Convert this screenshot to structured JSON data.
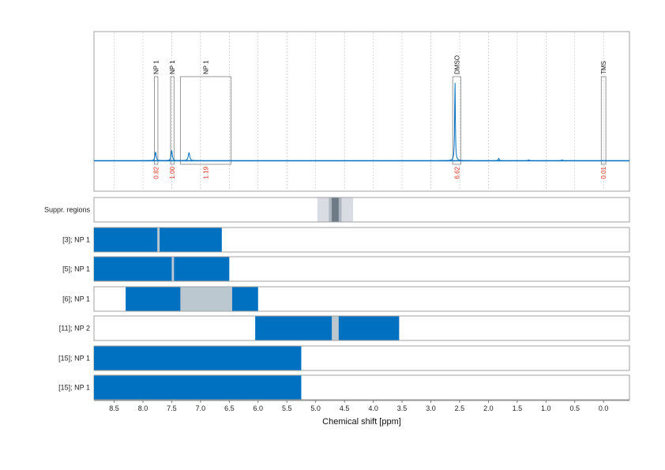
{
  "chart_data": {
    "type": "line",
    "xlabel": "Chemical shift [ppm]",
    "xlim": [
      8.85,
      -0.45
    ],
    "x_ticks": [
      8.5,
      8.0,
      7.5,
      7.0,
      6.5,
      6.0,
      5.5,
      5.0,
      4.5,
      4.0,
      3.5,
      3.0,
      2.5,
      2.0,
      1.5,
      1.0,
      0.5,
      0.0
    ],
    "x_tick_labels": [
      "8.5",
      "8.0",
      "7.5",
      "7.0",
      "6.5",
      "6.0",
      "5.5",
      "5.0",
      "4.5",
      "4.0",
      "3.5",
      "3.0",
      "2.5",
      "2.0",
      "1.5",
      "1.0",
      "0.5",
      "0.0"
    ],
    "grid": "vertical dotted",
    "spectrum_color": "#0070c0",
    "annotation_color": "#e0301e",
    "spectrum_peaks": [
      {
        "x": 7.78,
        "height": 0.11,
        "width": 0.012
      },
      {
        "x": 7.5,
        "height": 0.13,
        "width": 0.012
      },
      {
        "x": 7.2,
        "height": 0.1,
        "width": 0.015
      },
      {
        "x": 2.58,
        "height": 1.0,
        "width": 0.007
      },
      {
        "x": 1.82,
        "height": 0.03,
        "width": 0.01
      },
      {
        "x": 1.3,
        "height": 0.01,
        "width": 0.015
      },
      {
        "x": 0.72,
        "height": 0.01,
        "width": 0.015
      }
    ],
    "peak_regions": [
      {
        "label": "NP 1",
        "x_left": 7.8,
        "x_right": 7.74,
        "integral": "0.82"
      },
      {
        "label": "NP 1",
        "x_left": 7.52,
        "x_right": 7.46,
        "integral": "1.00"
      },
      {
        "label": "NP 1",
        "x_left": 7.35,
        "x_right": 6.47,
        "integral": "1.19"
      },
      {
        "label": "DMSO",
        "x_left": 2.62,
        "x_right": 2.48,
        "integral": "6.62"
      },
      {
        "label": "TMS",
        "x_left": 0.04,
        "x_right": -0.04,
        "integral": "0.01"
      }
    ],
    "rows": [
      {
        "label": "Suppr. regions",
        "bars": [
          {
            "from": 4.97,
            "to": 4.35,
            "color": "#d9dde3"
          },
          {
            "from": 4.77,
            "to": 4.55,
            "color": "#aeb6bf"
          },
          {
            "from": 4.72,
            "to": 4.6,
            "color": "#6d7b87"
          }
        ]
      },
      {
        "label": "[3]; NP 1",
        "bars": [
          {
            "from": 8.85,
            "to": 6.63,
            "color": "#0070c0"
          },
          {
            "from": 7.75,
            "to": 7.71,
            "color": "#bcc8d0"
          }
        ]
      },
      {
        "label": "[5]; NP 1",
        "bars": [
          {
            "from": 8.85,
            "to": 6.5,
            "color": "#0070c0"
          },
          {
            "from": 7.5,
            "to": 7.46,
            "color": "#bcc8d0"
          }
        ]
      },
      {
        "label": "[6]; NP 1",
        "bars": [
          {
            "from": 8.3,
            "to": 6.0,
            "color": "#0070c0"
          },
          {
            "from": 7.35,
            "to": 6.45,
            "color": "#bcc8d0"
          }
        ]
      },
      {
        "label": "[11]; NP 2",
        "bars": [
          {
            "from": 6.05,
            "to": 3.55,
            "color": "#0070c0"
          },
          {
            "from": 4.72,
            "to": 4.6,
            "color": "#bcc8d0"
          }
        ]
      },
      {
        "label": "[15]; NP 1",
        "bars": [
          {
            "from": 8.85,
            "to": 5.25,
            "color": "#0070c0"
          }
        ]
      },
      {
        "label": "[15]; NP 1",
        "bars": [
          {
            "from": 8.85,
            "to": 5.25,
            "color": "#0070c0"
          }
        ]
      }
    ]
  }
}
